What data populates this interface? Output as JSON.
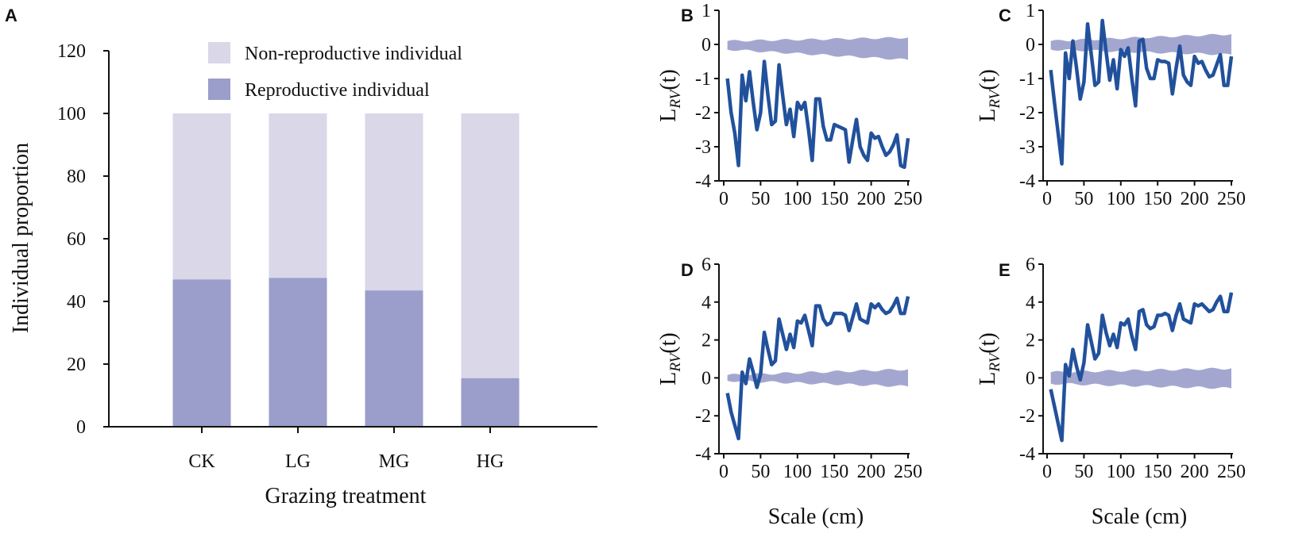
{
  "colors": {
    "non_reproductive": "#d9d7e8",
    "reproductive": "#9b9dca",
    "envelope": "#a3a7d0",
    "line": "#22519c",
    "axis": "#111111"
  },
  "chart_data": [
    {
      "panel": "A",
      "type": "bar",
      "stacked": true,
      "categories": [
        "CK",
        "LG",
        "MG",
        "HG"
      ],
      "series": [
        {
          "name": "Reproductive individual",
          "values": [
            47,
            47.5,
            43.5,
            15.5
          ]
        },
        {
          "name": "Non-reproductive individual",
          "values": [
            53,
            52.5,
            56.5,
            84.5
          ]
        }
      ],
      "legend": [
        "Non-reproductive individual",
        "Reproductive individual"
      ],
      "legend_position": "top",
      "xlabel": "Grazing treatment",
      "ylabel": "Individual proportion",
      "ylim": [
        0,
        120
      ],
      "yticks": [
        "0",
        "20",
        "40",
        "60",
        "80",
        "100",
        "120"
      ]
    },
    {
      "panel": "B",
      "type": "line",
      "xlabel": "",
      "ylabel_main": "L",
      "ylabel_sub": "RV",
      "ylabel_tail": "(t)",
      "xlim": [
        0,
        250
      ],
      "ylim": [
        -4,
        1
      ],
      "xticks": [
        "0",
        "50",
        "100",
        "150",
        "200",
        "250"
      ],
      "yticks": [
        "-4",
        "-3",
        "-2",
        "-1",
        "0",
        "1"
      ],
      "x": [
        5,
        10,
        15,
        20,
        25,
        30,
        35,
        40,
        45,
        50,
        55,
        60,
        65,
        70,
        75,
        80,
        85,
        90,
        95,
        100,
        105,
        110,
        115,
        120,
        125,
        130,
        135,
        140,
        145,
        150,
        155,
        160,
        165,
        170,
        175,
        180,
        185,
        190,
        195,
        200,
        205,
        210,
        215,
        220,
        225,
        230,
        235,
        240,
        245,
        250
      ],
      "y": [
        -1,
        -2,
        -2.6,
        -3.55,
        -0.9,
        -1.65,
        -0.8,
        -1.7,
        -2.5,
        -2.0,
        -0.5,
        -1.5,
        -2.35,
        -2.25,
        -0.6,
        -1.5,
        -2.35,
        -1.9,
        -2.7,
        -1.7,
        -1.9,
        -1.7,
        -2.5,
        -3.4,
        -1.6,
        -1.6,
        -2.4,
        -2.8,
        -2.8,
        -2.35,
        -2.4,
        -2.45,
        -2.5,
        -3.45,
        -2.8,
        -2.2,
        -3.0,
        -3.25,
        -3.4,
        -2.6,
        -2.75,
        -2.7,
        -3.0,
        -3.25,
        -3.15,
        -2.95,
        -2.65,
        -3.55,
        -3.6,
        -2.75
      ],
      "envelope_upper": [
        0.1,
        0.2
      ],
      "envelope_lower": [
        -0.15,
        -0.45
      ]
    },
    {
      "panel": "C",
      "type": "line",
      "xlabel": "",
      "ylabel_main": "L",
      "ylabel_sub": "RV",
      "ylabel_tail": "(t)",
      "xlim": [
        0,
        250
      ],
      "ylim": [
        -4,
        1
      ],
      "xticks": [
        "0",
        "50",
        "100",
        "150",
        "200",
        "250"
      ],
      "yticks": [
        "-4",
        "-3",
        "-2",
        "-1",
        "0",
        "1"
      ],
      "x": [
        5,
        10,
        15,
        20,
        25,
        30,
        35,
        40,
        45,
        50,
        55,
        60,
        65,
        70,
        75,
        80,
        85,
        90,
        95,
        100,
        105,
        110,
        115,
        120,
        125,
        130,
        135,
        140,
        145,
        150,
        155,
        160,
        165,
        170,
        175,
        180,
        185,
        190,
        195,
        200,
        205,
        210,
        215,
        220,
        225,
        230,
        235,
        240,
        245,
        250
      ],
      "y": [
        -0.75,
        -1.7,
        -2.6,
        -3.5,
        -0.25,
        -1.0,
        0.1,
        -0.7,
        -1.6,
        -1.1,
        0.6,
        -0.3,
        -1.2,
        -1.1,
        0.7,
        -0.2,
        -1.05,
        -0.45,
        -1.3,
        -0.15,
        -0.35,
        -0.1,
        -1.0,
        -1.8,
        0.1,
        0.15,
        -0.7,
        -1.0,
        -1.0,
        -0.45,
        -0.5,
        -0.5,
        -0.55,
        -1.45,
        -0.7,
        -0.05,
        -0.9,
        -1.1,
        -1.2,
        -0.35,
        -0.55,
        -0.5,
        -0.75,
        -0.95,
        -0.9,
        -0.6,
        -0.3,
        -1.2,
        -1.2,
        -0.35
      ],
      "envelope_upper": [
        0.1,
        0.3
      ],
      "envelope_lower": [
        -0.15,
        -0.3
      ]
    },
    {
      "panel": "D",
      "type": "line",
      "xlabel": "Scale (cm)",
      "ylabel_main": "L",
      "ylabel_sub": "RV",
      "ylabel_tail": "(t)",
      "xlim": [
        0,
        250
      ],
      "ylim": [
        -4,
        6
      ],
      "xticks": [
        "0",
        "50",
        "100",
        "150",
        "200",
        "250"
      ],
      "yticks": [
        "-4",
        "-2",
        "0",
        "2",
        "4",
        "6"
      ],
      "x": [
        5,
        10,
        15,
        20,
        25,
        30,
        35,
        40,
        45,
        50,
        55,
        60,
        65,
        70,
        75,
        80,
        85,
        90,
        95,
        100,
        105,
        110,
        115,
        120,
        125,
        130,
        135,
        140,
        145,
        150,
        155,
        160,
        165,
        170,
        175,
        180,
        185,
        190,
        195,
        200,
        205,
        210,
        215,
        220,
        225,
        230,
        235,
        240,
        245,
        250
      ],
      "y": [
        -0.8,
        -1.8,
        -2.5,
        -3.2,
        0.3,
        -0.3,
        1.0,
        0.3,
        -0.5,
        0.2,
        2.4,
        1.5,
        0.7,
        0.9,
        3.1,
        2.3,
        1.5,
        2.3,
        1.6,
        3.0,
        2.9,
        3.3,
        2.5,
        1.7,
        3.8,
        3.8,
        3.1,
        2.8,
        2.9,
        3.4,
        3.4,
        3.4,
        3.3,
        2.5,
        3.2,
        3.9,
        3.1,
        3.0,
        2.9,
        3.9,
        3.7,
        3.9,
        3.6,
        3.4,
        3.5,
        3.8,
        4.2,
        3.4,
        3.4,
        4.3
      ],
      "envelope_upper": [
        0.15,
        0.45
      ],
      "envelope_lower": [
        -0.15,
        -0.45
      ]
    },
    {
      "panel": "E",
      "type": "line",
      "xlabel": "Scale (cm)",
      "ylabel_main": "L",
      "ylabel_sub": "RV",
      "ylabel_tail": "(t)",
      "xlim": [
        0,
        250
      ],
      "ylim": [
        -4,
        6
      ],
      "xticks": [
        "0",
        "50",
        "100",
        "150",
        "200",
        "250"
      ],
      "yticks": [
        "-4",
        "-2",
        "0",
        "2",
        "4",
        "6"
      ],
      "x": [
        5,
        10,
        15,
        20,
        25,
        30,
        35,
        40,
        45,
        50,
        55,
        60,
        65,
        70,
        75,
        80,
        85,
        90,
        95,
        100,
        105,
        110,
        115,
        120,
        125,
        130,
        135,
        140,
        145,
        150,
        155,
        160,
        165,
        170,
        175,
        180,
        185,
        190,
        195,
        200,
        205,
        210,
        215,
        220,
        225,
        230,
        235,
        240,
        245,
        250
      ],
      "y": [
        -0.6,
        -1.5,
        -2.4,
        -3.3,
        0.7,
        0.1,
        1.5,
        0.6,
        -0.1,
        0.8,
        2.8,
        1.9,
        1.0,
        1.3,
        3.3,
        2.4,
        1.7,
        2.3,
        1.6,
        2.9,
        2.8,
        3.1,
        2.2,
        1.5,
        3.5,
        3.6,
        2.8,
        2.6,
        2.7,
        3.3,
        3.3,
        3.4,
        3.3,
        2.5,
        3.3,
        3.9,
        3.1,
        3.0,
        2.9,
        3.9,
        3.8,
        3.9,
        3.7,
        3.5,
        3.6,
        4.0,
        4.3,
        3.5,
        3.5,
        4.5
      ],
      "envelope_upper": [
        0.3,
        0.5
      ],
      "envelope_lower": [
        -0.3,
        -0.55
      ]
    }
  ]
}
